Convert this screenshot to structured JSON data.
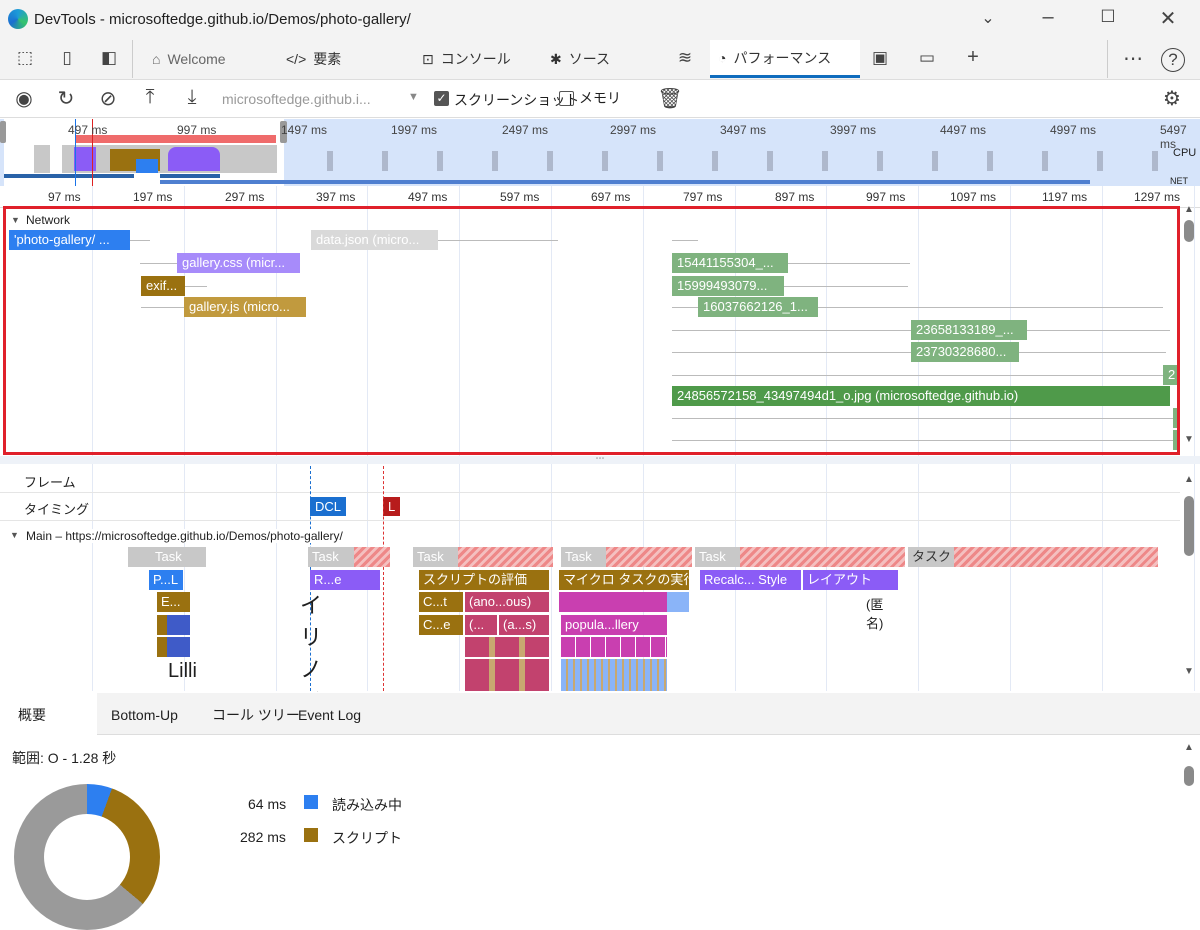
{
  "window": {
    "title": "DevTools - microsoftedge.github.io/Demos/photo-gallery/"
  },
  "tabs": [
    {
      "label": "Welcome"
    },
    {
      "label": "要素"
    },
    {
      "label": "コンソール"
    },
    {
      "label": "ソース"
    },
    {
      "label": "パフォーマンス"
    }
  ],
  "toolbar": {
    "url": "microsoftedge.github.i...",
    "screenshot_label": "スクリーンショット",
    "screenshot_checked": true,
    "memory_label": "メモリ",
    "memory_checked": false
  },
  "overview": {
    "ticks": [
      "497 ms",
      "997 ms",
      "1497 ms",
      "1997 ms",
      "2497 ms",
      "2997 ms",
      "3497 ms",
      "3997 ms",
      "4497 ms",
      "4997 ms",
      "5497 ms"
    ],
    "cpu_label": "CPU",
    "net_label": "NET"
  },
  "ruler": {
    "ticks": [
      "97 ms",
      "197 ms",
      "297 ms",
      "397 ms",
      "497 ms",
      "597 ms",
      "697 ms",
      "797 ms",
      "897 ms",
      "997 ms",
      "1097 ms",
      "1197 ms",
      "1297 ms"
    ]
  },
  "network": {
    "title": "Network",
    "requests": [
      "'photo-gallery/ ...",
      "gallery.css (micr...",
      "exif...",
      "gallery.js (micro...",
      "data.json (micro...",
      "15441155304_...",
      "15999493079...",
      "16037662126_1...",
      "23658133189_...",
      "23730328680...",
      "2",
      "24856572158_43497494d1_o.jpg (microsoftedge.github.io)"
    ]
  },
  "tracks": {
    "frames": "フレーム",
    "timings": "タイミング",
    "dcl": "DCL",
    "load": "L",
    "main": "Main – https://microsoftedge.github.io/Demos/photo-gallery/"
  },
  "flame": {
    "task": "Task",
    "task_jp": "タスク",
    "pl": "P...L",
    "e": "E...",
    "re": "R...e",
    "eval": "スクリプトの評価",
    "micro": "マイクロ タスクの実行",
    "recalc": "Recalc... Style",
    "layout": "レイアウト",
    "ct": "C...t",
    "anon": "(ano...ous)",
    "ce": "C...e",
    "p1": "(...",
    "as": "(a...s)",
    "popula": "popula...llery",
    "anon2": "(匿名)",
    "glitch1": "イリノイ",
    "glitch2": "Lilli"
  },
  "bottom": {
    "tabs": [
      "概要",
      "Bottom-Up",
      "コール ツリー",
      "Event Log"
    ],
    "range": "範囲: O - 1.28 秒",
    "legend": [
      {
        "value": "64 ms",
        "label": "読み込み中",
        "color": "#2d7ff0"
      },
      {
        "value": "282 ms",
        "label": "スクリプト",
        "color": "#9a7110"
      }
    ]
  }
}
